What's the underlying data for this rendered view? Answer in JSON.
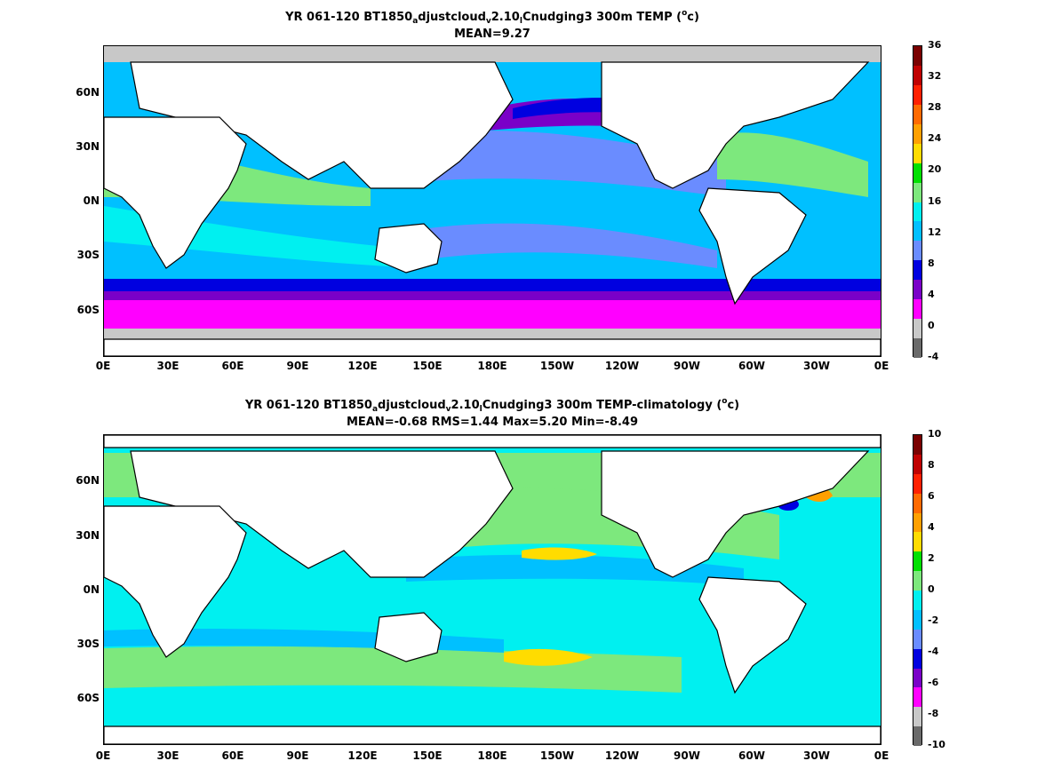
{
  "panels": [
    {
      "title_parts": [
        "YR 061-120 BT1850",
        "a",
        "djustcloud",
        "v",
        "2.10",
        "l",
        "Cnudging3 300m TEMP (",
        "o",
        "c)"
      ],
      "subtitle": "MEAN=9.27",
      "colorbar": {
        "ticks": [
          "36",
          "32",
          "28",
          "24",
          "20",
          "16",
          "12",
          "8",
          "4",
          "0",
          "-4"
        ],
        "colors": [
          "#7a0000",
          "#c00000",
          "#ff2000",
          "#ff6a00",
          "#ffa000",
          "#ffdc00",
          "#00e000",
          "#7de87d",
          "#00f0f0",
          "#00c0ff",
          "#6a8cff",
          "#0000e0",
          "#7a00c8",
          "#ff00ff",
          "#c8c8c8",
          "#6a6a6a"
        ]
      }
    },
    {
      "title_parts": [
        "YR 061-120 BT1850",
        "a",
        "djustcloud",
        "v",
        "2.10",
        "l",
        "Cnudging3 300m TEMP-climatology (",
        "o",
        "c)"
      ],
      "subtitle": "MEAN=-0.68   RMS=1.44   Max=5.20   Min=-8.49",
      "colorbar": {
        "ticks": [
          "10",
          "8",
          "6",
          "4",
          "2",
          "0",
          "-2",
          "-4",
          "-6",
          "-8",
          "-10"
        ],
        "colors": [
          "#7a0000",
          "#c00000",
          "#ff2000",
          "#ff6a00",
          "#ffa000",
          "#ffdc00",
          "#00e000",
          "#7de87d",
          "#00f0f0",
          "#00c0ff",
          "#6a8cff",
          "#0000e0",
          "#7a00c8",
          "#ff00ff",
          "#c8c8c8",
          "#6a6a6a"
        ]
      }
    }
  ],
  "lat_labels": [
    "60N",
    "30N",
    "0N",
    "30S",
    "60S"
  ],
  "lon_labels": [
    "0E",
    "30E",
    "60E",
    "90E",
    "120E",
    "150E",
    "180E",
    "150W",
    "120W",
    "90W",
    "60W",
    "30W",
    "0E"
  ]
}
